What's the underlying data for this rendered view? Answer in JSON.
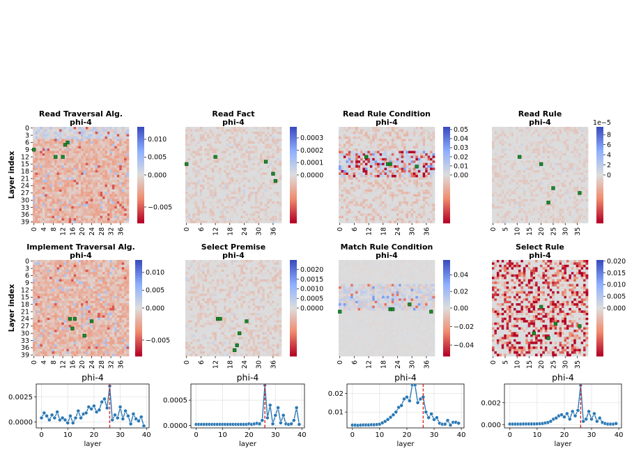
{
  "figure": {
    "heatmap_ylabel": "Layer index",
    "heatmap_yticks": [
      "0",
      "3",
      "6",
      "9",
      "12",
      "15",
      "18",
      "21",
      "24",
      "27",
      "30",
      "33",
      "36",
      "39"
    ],
    "line_xlabel": "layer"
  },
  "chart_data": [
    {
      "type": "heatmap",
      "title": "Read Traversal Alg.",
      "subtitle": "phi-4",
      "cmap": "coolwarm_r",
      "vmin": -0.0075,
      "vmax": 0.0135,
      "colorbar_ticks": [
        0.01,
        0.005,
        0.0,
        -0.005
      ],
      "colorbar_labels": [
        "0.010",
        "0.005",
        "0.000",
        "−0.005"
      ],
      "colorbar_offset": "",
      "xticks": [
        "0",
        "4",
        "8",
        "12",
        "16",
        "20",
        "24",
        "28",
        "32",
        "36"
      ],
      "highlight_cells": [
        [
          0,
          9
        ],
        [
          9,
          12
        ],
        [
          12,
          12
        ],
        [
          13,
          7
        ],
        [
          14,
          6
        ]
      ],
      "pattern": "warm"
    },
    {
      "type": "heatmap",
      "title": "Read Fact",
      "subtitle": "phi-4",
      "cmap": "coolwarm_r",
      "vmin": -4e-05,
      "vmax": 0.00039,
      "colorbar_ticks": [
        0.0003,
        0.0002,
        0.0001,
        0.0
      ],
      "colorbar_labels": [
        "0.0003",
        "0.0002",
        "0.0001",
        "0.0000"
      ],
      "colorbar_offset": "",
      "xticks": [
        "0",
        "6",
        "12",
        "18",
        "24",
        "30",
        "36"
      ],
      "highlight_cells": [
        [
          0,
          15
        ],
        [
          12,
          12
        ],
        [
          33,
          14
        ],
        [
          36,
          19
        ],
        [
          37,
          22
        ]
      ],
      "pattern": "neutral"
    },
    {
      "type": "heatmap",
      "title": "Read Rule Condition",
      "subtitle": "phi-4",
      "cmap": "coolwarm_r",
      "vmin": -0.006,
      "vmax": 0.053,
      "colorbar_ticks": [
        0.05,
        0.04,
        0.03,
        0.02,
        0.01,
        0.0
      ],
      "colorbar_labels": [
        "0.05",
        "0.04",
        "0.03",
        "0.02",
        "0.01",
        "0.00"
      ],
      "colorbar_offset": "",
      "xticks": [
        "0",
        "6",
        "12",
        "18",
        "24",
        "30",
        "36"
      ],
      "highlight_cells": [
        [
          11,
          12
        ],
        [
          20,
          15
        ],
        [
          21,
          15
        ],
        [
          32,
          16
        ]
      ],
      "pattern": "band"
    },
    {
      "type": "heatmap",
      "title": "Read Rule",
      "subtitle": "phi-4",
      "cmap": "coolwarm_r",
      "vmin": -1.2e-05,
      "vmax": 9.55e-05,
      "colorbar_ticks": [
        8e-05,
        6e-05,
        4e-05,
        2e-05,
        0.0
      ],
      "colorbar_labels": [
        "8",
        "6",
        "4",
        "2",
        "0"
      ],
      "colorbar_offset": "1e−5",
      "xticks": [
        "0",
        "5",
        "10",
        "15",
        "20",
        "25",
        "30",
        "35"
      ],
      "highlight_cells": [
        [
          11,
          12
        ],
        [
          20,
          15
        ],
        [
          25,
          25
        ],
        [
          23,
          31
        ],
        [
          36,
          27
        ]
      ],
      "pattern": "neutral"
    },
    {
      "type": "heatmap",
      "title": "Implement Traversal Alg.",
      "subtitle": "phi-4",
      "cmap": "coolwarm_r",
      "vmin": -0.0075,
      "vmax": 0.0135,
      "colorbar_ticks": [
        0.01,
        0.005,
        0.0,
        -0.005
      ],
      "colorbar_labels": [
        "0.010",
        "0.005",
        "0.000",
        "−0.005"
      ],
      "colorbar_offset": "",
      "xticks": [
        "0",
        "4",
        "8",
        "12",
        "16",
        "20",
        "24",
        "28",
        "32",
        "36"
      ],
      "highlight_cells": [
        [
          15,
          24
        ],
        [
          17,
          24
        ],
        [
          24,
          25
        ],
        [
          16,
          28
        ],
        [
          21,
          31
        ]
      ],
      "pattern": "warm"
    },
    {
      "type": "heatmap",
      "title": "Select Premise",
      "subtitle": "phi-4",
      "cmap": "coolwarm_r",
      "vmin": -0.00025,
      "vmax": 0.0025,
      "colorbar_ticks": [
        0.002,
        0.0015,
        0.001,
        0.0005,
        0.0
      ],
      "colorbar_labels": [
        "0.0020",
        "0.0015",
        "0.0010",
        "0.0005",
        "0.0000"
      ],
      "colorbar_offset": "",
      "xticks": [
        "0",
        "6",
        "12",
        "18",
        "24",
        "30",
        "36"
      ],
      "highlight_cells": [
        [
          13,
          24
        ],
        [
          14,
          24
        ],
        [
          25,
          25
        ],
        [
          22,
          30
        ],
        [
          21,
          35
        ],
        [
          20,
          37
        ]
      ],
      "pattern": "neutral"
    },
    {
      "type": "heatmap",
      "title": "Match Rule Condition",
      "subtitle": "phi-4",
      "cmap": "coolwarm_r",
      "vmin": -0.052,
      "vmax": 0.058,
      "colorbar_ticks": [
        0.04,
        0.02,
        0.0,
        -0.02,
        -0.04
      ],
      "colorbar_labels": [
        "0.04",
        "0.02",
        "0.00",
        "−0.02",
        "−0.04"
      ],
      "colorbar_offset": "",
      "xticks": [
        "0",
        "6",
        "12",
        "18",
        "24",
        "30",
        "36"
      ],
      "highlight_cells": [
        [
          0,
          21
        ],
        [
          21,
          20
        ],
        [
          22,
          20
        ],
        [
          29,
          18
        ],
        [
          38,
          21
        ]
      ],
      "pattern": "band"
    },
    {
      "type": "heatmap",
      "title": "Select Rule",
      "subtitle": "phi-4",
      "cmap": "coolwarm_r",
      "vmin": -0.0003,
      "vmax": 0.0205,
      "colorbar_ticks": [
        0.02,
        0.015,
        0.01,
        0.005,
        0.0
      ],
      "colorbar_labels": [
        "0.020",
        "0.015",
        "0.010",
        "0.005",
        "0.000"
      ],
      "colorbar_offset": "",
      "xticks": [
        "0",
        "5",
        "10",
        "15",
        "20",
        "25",
        "30",
        "35"
      ],
      "highlight_cells": [
        [
          20,
          19
        ],
        [
          26,
          26
        ],
        [
          17,
          30
        ],
        [
          23,
          32
        ],
        [
          36,
          27
        ]
      ],
      "pattern": "neutral"
    },
    {
      "type": "line",
      "title": "phi-4",
      "xlabel": "layer",
      "xlim": [
        -2,
        41
      ],
      "ylim": [
        -0.0006,
        0.0038
      ],
      "yticks": [
        0.0,
        0.0025
      ],
      "ytick_labels": [
        "0.0000",
        "0.0025"
      ],
      "xticks": [
        0,
        10,
        20,
        30,
        40
      ],
      "vline_x": 26,
      "x": [
        0,
        1,
        2,
        3,
        4,
        5,
        6,
        7,
        8,
        9,
        10,
        11,
        12,
        13,
        14,
        15,
        16,
        17,
        18,
        19,
        20,
        21,
        22,
        23,
        24,
        25,
        26,
        27,
        28,
        29,
        30,
        31,
        32,
        33,
        34,
        35,
        36,
        37,
        38,
        39
      ],
      "y": [
        0.0004,
        0.0009,
        0.0006,
        0.0002,
        0.0007,
        0.0004,
        0.001,
        0.0002,
        0.0004,
        0.0002,
        -0.0001,
        0.0006,
        -0.0001,
        0.0004,
        0.0011,
        0.0004,
        0.0008,
        0.0009,
        0.0015,
        0.0013,
        0.0016,
        0.001,
        0.0012,
        0.002,
        0.0023,
        0.0014,
        0.0036,
        0.0002,
        0.0007,
        0.0004,
        0.0015,
        0.0003,
        0.0011,
        0.0006,
        -0.0002,
        0.0008,
        0.0003,
        0.0001,
        0.0005,
        -0.0004
      ]
    },
    {
      "type": "line",
      "title": "phi-4",
      "xlabel": "layer",
      "xlim": [
        -2,
        41
      ],
      "ylim": [
        -5e-05,
        0.00082
      ],
      "yticks": [
        0.0,
        0.0005
      ],
      "ytick_labels": [
        "0.0000",
        "0.0005"
      ],
      "xticks": [
        0,
        10,
        20,
        30,
        40
      ],
      "vline_x": 26,
      "x": [
        0,
        1,
        2,
        3,
        4,
        5,
        6,
        7,
        8,
        9,
        10,
        11,
        12,
        13,
        14,
        15,
        16,
        17,
        18,
        19,
        20,
        21,
        22,
        23,
        24,
        25,
        26,
        27,
        28,
        29,
        30,
        31,
        32,
        33,
        34,
        35,
        36,
        37,
        38,
        39
      ],
      "y": [
        2e-05,
        2e-05,
        2e-05,
        2e-05,
        2e-05,
        2e-05,
        2e-05,
        2e-05,
        2e-05,
        2e-05,
        2e-05,
        2e-05,
        2e-05,
        2e-05,
        2e-05,
        2e-05,
        2e-05,
        2e-05,
        2e-05,
        2e-05,
        3e-05,
        2e-05,
        3e-05,
        4e-05,
        3e-05,
        0.0001,
        0.0008,
        0.00015,
        0.0004,
        3e-05,
        0.0002,
        0.00035,
        5e-05,
        0.0002,
        3e-05,
        2e-05,
        3e-05,
        0.0001,
        0.00035,
        2e-05
      ]
    },
    {
      "type": "line",
      "title": "phi-4",
      "xlabel": "layer",
      "xlim": [
        -2,
        41
      ],
      "ylim": [
        0.0015,
        0.025
      ],
      "yticks": [
        0.01,
        0.02
      ],
      "ytick_labels": [
        "0.01",
        "0.02"
      ],
      "xticks": [
        0,
        10,
        20,
        30,
        40
      ],
      "vline_x": 26,
      "x": [
        0,
        1,
        2,
        3,
        4,
        5,
        6,
        7,
        8,
        9,
        10,
        11,
        12,
        13,
        14,
        15,
        16,
        17,
        18,
        19,
        20,
        21,
        22,
        23,
        24,
        25,
        26,
        27,
        28,
        29,
        30,
        31,
        32,
        33,
        34,
        35,
        36,
        37,
        38,
        39
      ],
      "y": [
        0.003,
        0.003,
        0.0029,
        0.003,
        0.0031,
        0.0031,
        0.0031,
        0.0032,
        0.0032,
        0.0033,
        0.0035,
        0.0042,
        0.005,
        0.006,
        0.0072,
        0.0085,
        0.01,
        0.0125,
        0.0135,
        0.017,
        0.018,
        0.016,
        0.0245,
        0.0245,
        0.015,
        0.017,
        0.018,
        0.01,
        0.007,
        0.009,
        0.006,
        0.007,
        0.004,
        0.0035,
        0.0035,
        0.0055,
        0.003,
        0.0045,
        0.0045,
        0.004
      ]
    },
    {
      "type": "line",
      "title": "phi-4",
      "xlabel": "layer",
      "xlim": [
        -2,
        41
      ],
      "ylim": [
        -0.0003,
        0.0037
      ],
      "yticks": [
        0.0,
        0.002
      ],
      "ytick_labels": [
        "0.000",
        "0.002"
      ],
      "xticks": [
        0,
        10,
        20,
        30,
        40
      ],
      "vline_x": 26,
      "x": [
        0,
        1,
        2,
        3,
        4,
        5,
        6,
        7,
        8,
        9,
        10,
        11,
        12,
        13,
        14,
        15,
        16,
        17,
        18,
        19,
        20,
        21,
        22,
        23,
        24,
        25,
        26,
        27,
        28,
        29,
        30,
        31,
        32,
        33,
        34,
        35,
        36,
        37,
        38,
        39
      ],
      "y": [
        5e-05,
        5e-05,
        5e-05,
        5e-05,
        5e-05,
        6e-05,
        6e-05,
        6e-05,
        6e-05,
        6e-05,
        7e-05,
        8e-05,
        0.0001,
        0.00015,
        0.0002,
        0.0003,
        0.0005,
        0.0006,
        0.0008,
        0.0009,
        0.0007,
        0.001,
        0.0005,
        0.0012,
        0.0008,
        0.0013,
        0.0036,
        0.0003,
        0.0005,
        0.0012,
        0.0005,
        0.001,
        0.0003,
        0.0006,
        0.0002,
        0.0001,
        5e-05,
        5e-05,
        5e-05,
        0.0001
      ]
    }
  ]
}
